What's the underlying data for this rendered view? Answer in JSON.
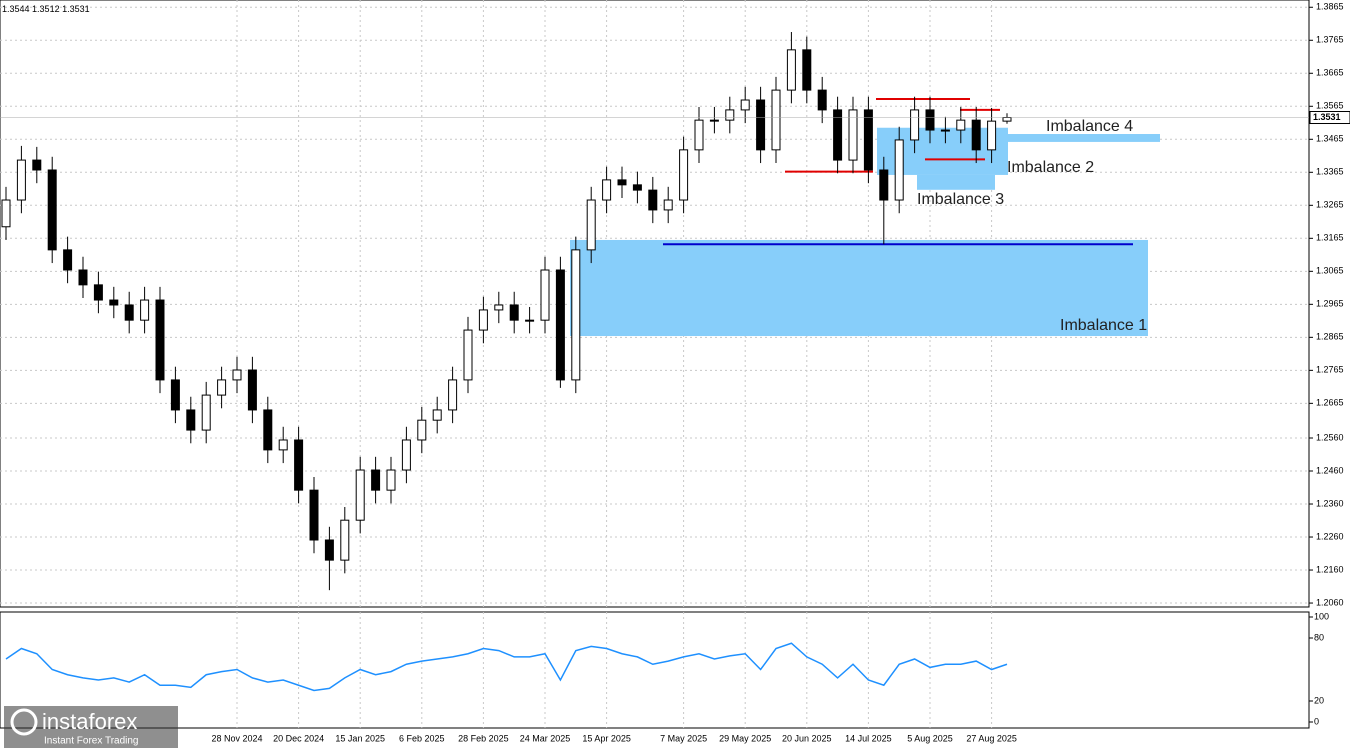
{
  "chart_data": {
    "type": "candlestick",
    "categories": [
      null,
      null,
      null,
      null,
      null,
      null,
      null,
      null,
      null,
      null,
      null,
      null,
      null,
      null,
      null,
      "28 Nov 2024",
      null,
      null,
      null,
      "20 Dec 2024",
      null,
      null,
      null,
      "15 Jan 2025",
      null,
      null,
      null,
      "6 Feb 2025",
      null,
      null,
      null,
      "28 Feb 2025",
      null,
      null,
      null,
      "24 Mar 2025",
      null,
      null,
      null,
      "15 Apr 2025",
      null,
      null,
      null,
      null,
      "7 May 2025",
      null,
      null,
      null,
      "29 May 2025",
      null,
      null,
      null,
      "20 Jun 2025",
      null,
      null,
      null,
      "14 Jul 2025",
      null,
      null,
      null,
      "5 Aug 2025",
      null,
      null,
      null,
      "27 Aug 2025",
      null
    ],
    "open": [
      1.32,
      1.3281,
      1.3402,
      1.3372,
      1.313,
      1.3069,
      1.3024,
      1.2978,
      1.2963,
      1.2917,
      1.2978,
      1.2736,
      1.2645,
      1.2584,
      1.269,
      1.2736,
      1.2766,
      1.2645,
      1.2524,
      1.2554,
      1.2402,
      1.2251,
      1.219,
      1.2311,
      1.2463,
      1.2402,
      1.2463,
      1.2554,
      1.2614,
      1.2645,
      1.2736,
      1.2887,
      1.2948,
      1.2963,
      1.2917,
      1.2917,
      1.3069,
      1.2736,
      1.313,
      1.3281,
      1.3342,
      1.3327,
      1.3311,
      1.3251,
      1.3281,
      1.3433,
      1.3523,
      1.3523,
      1.3554,
      1.3584,
      1.3433,
      1.3614,
      1.3736,
      1.3614,
      1.3554,
      1.3402,
      1.3554,
      1.3372,
      1.3281,
      1.3463,
      1.3554,
      1.3493,
      1.3493,
      1.3523,
      1.3433,
      1.352
    ],
    "high": [
      1.3321,
      1.3445,
      1.3442,
      1.3412,
      1.317,
      1.3109,
      1.3064,
      1.3018,
      1.3003,
      1.3018,
      1.3018,
      1.2776,
      1.2685,
      1.273,
      1.2776,
      1.2806,
      1.2806,
      1.2685,
      1.2594,
      1.2594,
      1.2442,
      1.2291,
      1.2351,
      1.2503,
      1.2503,
      1.2503,
      1.2594,
      1.2654,
      1.2685,
      1.2776,
      1.2927,
      1.2988,
      1.3003,
      1.3003,
      1.2957,
      1.3109,
      1.3109,
      1.317,
      1.3321,
      1.3382,
      1.3382,
      1.3367,
      1.3351,
      1.3321,
      1.3473,
      1.3563,
      1.3563,
      1.3594,
      1.3624,
      1.3624,
      1.3654,
      1.379,
      1.3776,
      1.3654,
      1.3594,
      1.3594,
      1.3594,
      1.3412,
      1.3503,
      1.3594,
      1.3594,
      1.3533,
      1.3563,
      1.3563,
      1.356,
      1.3544
    ],
    "low": [
      1.316,
      1.3241,
      1.3332,
      1.309,
      1.3029,
      1.2984,
      1.2938,
      1.2923,
      1.2877,
      1.2877,
      1.2696,
      1.2605,
      1.2544,
      1.2544,
      1.265,
      1.2696,
      1.2605,
      1.2484,
      1.2484,
      1.2362,
      1.2211,
      1.2099,
      1.215,
      1.2271,
      1.2362,
      1.2362,
      1.2423,
      1.2514,
      1.2574,
      1.2605,
      1.2696,
      1.2847,
      1.2908,
      1.2877,
      1.2877,
      1.2877,
      1.2712,
      1.2696,
      1.309,
      1.3241,
      1.3287,
      1.3271,
      1.3211,
      1.3211,
      1.3241,
      1.3393,
      1.3483,
      1.3483,
      1.3514,
      1.3393,
      1.3393,
      1.3574,
      1.3574,
      1.3514,
      1.3362,
      1.3362,
      1.3332,
      1.3147,
      1.3241,
      1.3423,
      1.3453,
      1.3453,
      1.3453,
      1.3393,
      1.3393,
      1.3512
    ],
    "close": [
      1.3281,
      1.3402,
      1.3372,
      1.313,
      1.3069,
      1.3024,
      1.2978,
      1.2963,
      1.2917,
      1.2978,
      1.2736,
      1.2645,
      1.2584,
      1.269,
      1.2736,
      1.2766,
      1.2645,
      1.2524,
      1.2554,
      1.2402,
      1.2251,
      1.219,
      1.2311,
      1.2463,
      1.2402,
      1.2463,
      1.2554,
      1.2614,
      1.2645,
      1.2736,
      1.2887,
      1.2948,
      1.2963,
      1.2917,
      1.2917,
      1.3069,
      1.2736,
      1.313,
      1.3281,
      1.3342,
      1.3327,
      1.3311,
      1.3251,
      1.3281,
      1.3433,
      1.3523,
      1.3523,
      1.3554,
      1.3584,
      1.3433,
      1.3614,
      1.3736,
      1.3614,
      1.3554,
      1.3402,
      1.3554,
      1.3372,
      1.3281,
      1.3463,
      1.3554,
      1.3493,
      1.3493,
      1.3523,
      1.3433,
      1.352,
      1.3531
    ],
    "ylim": [
      1.2048,
      1.3887
    ],
    "yticks": [
      {
        "value": 1.206,
        "label": "1.2060"
      },
      {
        "value": 1.216,
        "label": "1.2160"
      },
      {
        "value": 1.226,
        "label": "1.2260"
      },
      {
        "value": 1.236,
        "label": "1.2360"
      },
      {
        "value": 1.246,
        "label": "1.2460"
      },
      {
        "value": 1.256,
        "label": "1.2560"
      },
      1.2665,
      1.2765,
      1.2865,
      1.2965,
      1.3065,
      1.3165,
      1.3265,
      1.3365,
      1.3465,
      1.3565,
      1.3665,
      1.3765,
      1.3865
    ],
    "grid": true,
    "zones": [
      {
        "label": "Imbalance 1",
        "low": 1.2869,
        "high": 1.316
      },
      {
        "label": "Imbalance 2",
        "low": 1.3357,
        "high": 1.35
      },
      {
        "label": "Imbalance 3",
        "low": 1.3312,
        "high": 1.3357
      },
      {
        "label": "Imbalance 4",
        "low": 1.3457,
        "high": 1.3481
      }
    ],
    "zone_color": "#87cefa",
    "levels": [
      {
        "value": 1.3147,
        "color": "#0000cd"
      },
      {
        "value": 1.3587,
        "color": "#e00000"
      },
      {
        "value": 1.3367,
        "color": "#e00000"
      },
      {
        "value": 1.3554,
        "color": "#e00000"
      },
      {
        "value": 1.3404,
        "color": "#e00000"
      }
    ],
    "indicator": {
      "type": "line",
      "color": "#1e90ff",
      "ylim": [
        0,
        100
      ],
      "yticks": [
        100,
        80,
        20,
        0
      ],
      "values": [
        60,
        70,
        65,
        50,
        45,
        42,
        40,
        42,
        38,
        45,
        35,
        35,
        33,
        45,
        48,
        50,
        42,
        38,
        40,
        35,
        30,
        32,
        42,
        50,
        45,
        48,
        55,
        58,
        60,
        62,
        65,
        70,
        68,
        62,
        62,
        65,
        40,
        68,
        72,
        70,
        65,
        62,
        55,
        58,
        62,
        65,
        60,
        63,
        65,
        50,
        70,
        75,
        62,
        55,
        42,
        55,
        40,
        35,
        55,
        60,
        52,
        55,
        55,
        58,
        50,
        55
      ]
    }
  },
  "branding": {
    "name": "instaforex",
    "tagline": "Instant Forex Trading"
  }
}
